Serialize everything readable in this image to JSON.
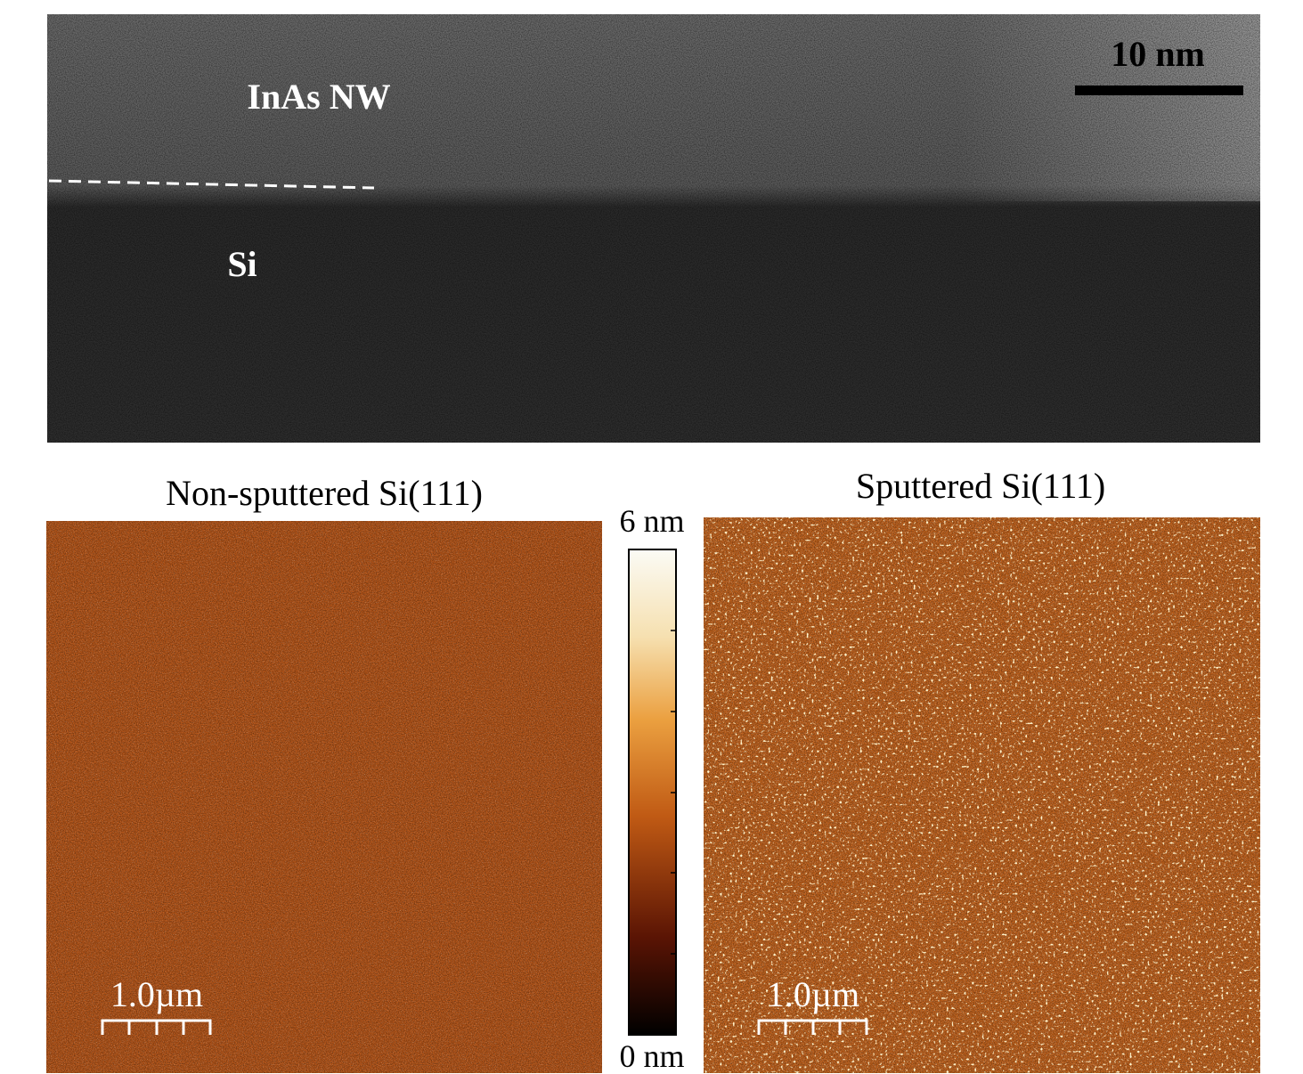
{
  "tem": {
    "scale_bar": "10 nm",
    "labels": [
      "InAs NW",
      "Si"
    ]
  },
  "afm": [
    {
      "title": "Non-sputtered Si(111)",
      "scale_bar": "1.0µm"
    },
    {
      "title": "Sputtered Si(111)",
      "scale_bar": "1.0µm"
    }
  ],
  "colorbar": {
    "max_label": "6 nm",
    "min_label": "0 nm"
  }
}
